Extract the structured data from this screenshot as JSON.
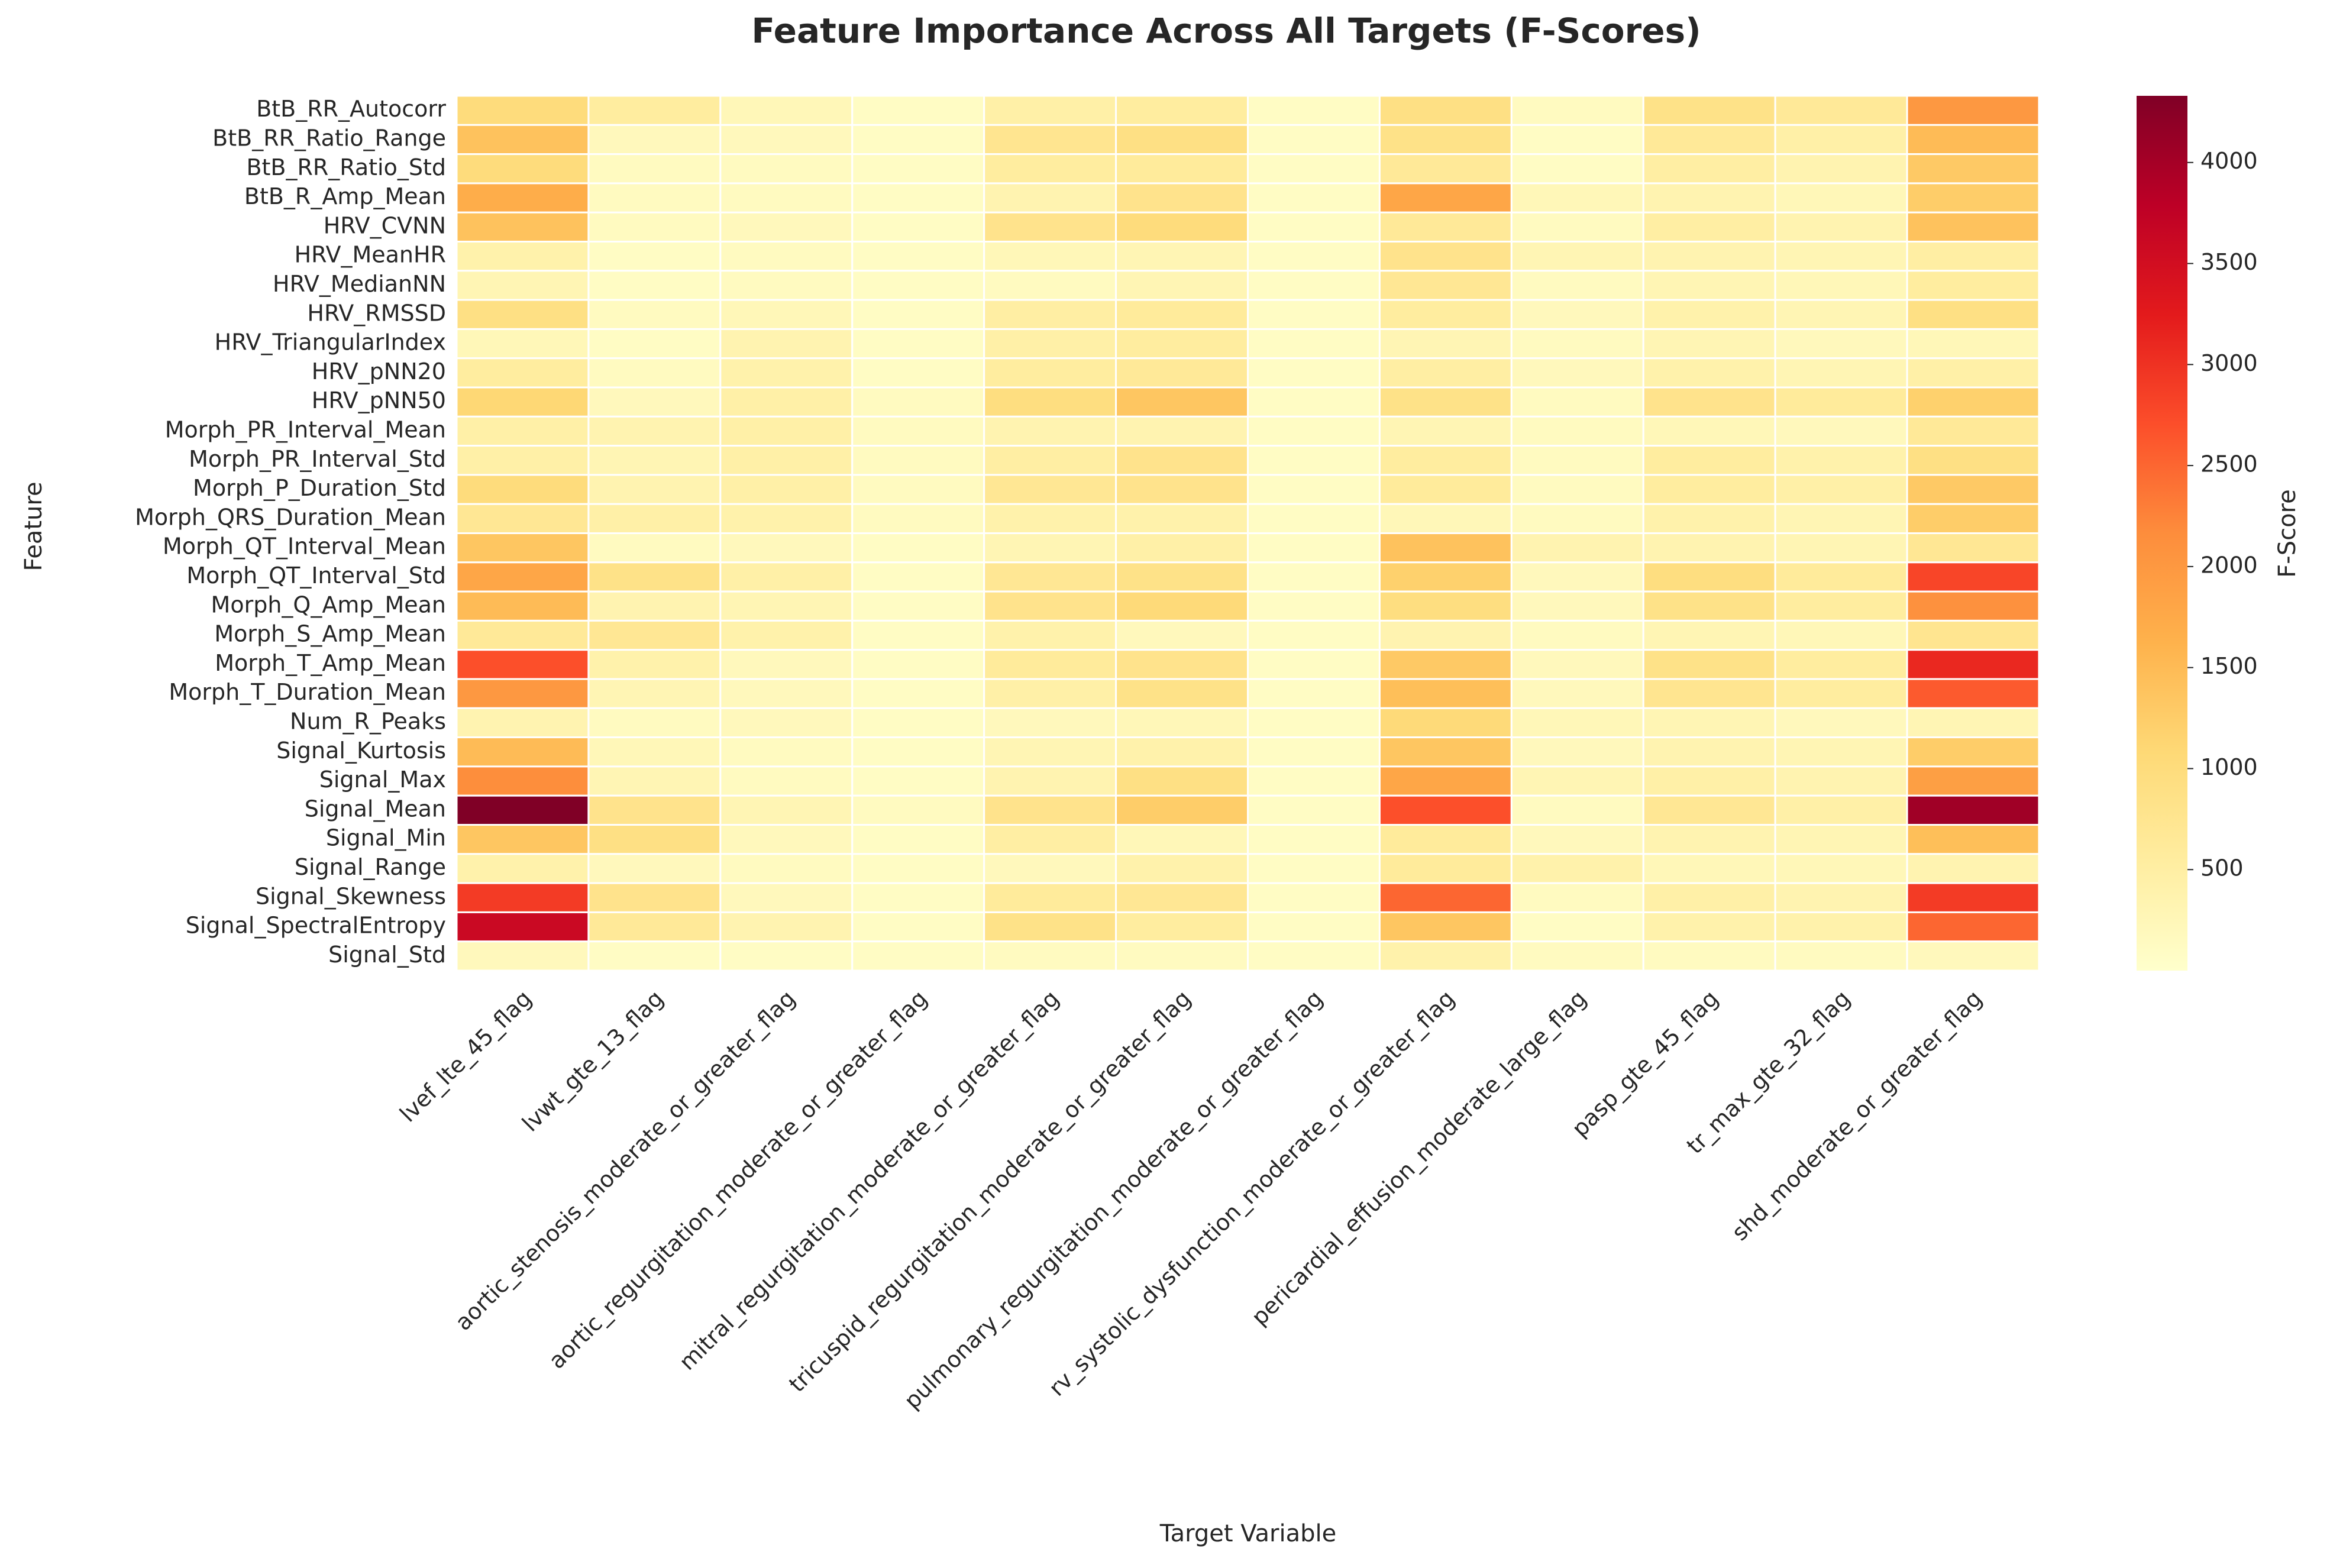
{
  "chart_data": {
    "type": "heatmap",
    "title": "Feature Importance Across All Targets (F-Scores)",
    "xlabel": "Target Variable",
    "ylabel": "Feature",
    "colorbar_label": "F-Score",
    "colormap": "YlOrRd",
    "value_range": [
      0,
      4330
    ],
    "colorbar_ticks": [
      500,
      1000,
      1500,
      2000,
      2500,
      3000,
      3500,
      4000
    ],
    "colors": {
      "YlOrRd": [
        "#ffffcc",
        "#ffeda0",
        "#fed976",
        "#feb24c",
        "#fd8d3c",
        "#fc4e2a",
        "#e31a1c",
        "#bd0026",
        "#800026"
      ],
      "cell_border": "#ffffff",
      "text": "#262626"
    },
    "grid": false,
    "columns": [
      "lvef_lte_45_flag",
      "lvwt_gte_13_flag",
      "aortic_stenosis_moderate_or_greater_flag",
      "aortic_regurgitation_moderate_or_greater_flag",
      "mitral_regurgitation_moderate_or_greater_flag",
      "tricuspid_regurgitation_moderate_or_greater_flag",
      "pulmonary_regurgitation_moderate_or_greater_flag",
      "rv_systolic_dysfunction_moderate_or_greater_flag",
      "pericardial_effusion_moderate_large_flag",
      "pasp_gte_45_flag",
      "tr_max_gte_32_flag",
      "shd_moderate_or_greater_flag"
    ],
    "rows": [
      "BtB_RR_Autocorr",
      "BtB_RR_Ratio_Range",
      "BtB_RR_Ratio_Std",
      "BtB_R_Amp_Mean",
      "HRV_CVNN",
      "HRV_MeanHR",
      "HRV_MedianNN",
      "HRV_RMSSD",
      "HRV_TriangularIndex",
      "HRV_pNN20",
      "HRV_pNN50",
      "Morph_PR_Interval_Mean",
      "Morph_PR_Interval_Std",
      "Morph_P_Duration_Std",
      "Morph_QRS_Duration_Mean",
      "Morph_QT_Interval_Mean",
      "Morph_QT_Interval_Std",
      "Morph_Q_Amp_Mean",
      "Morph_S_Amp_Mean",
      "Morph_T_Amp_Mean",
      "Morph_T_Duration_Mean",
      "Num_R_Peaks",
      "Signal_Kurtosis",
      "Signal_Max",
      "Signal_Mean",
      "Signal_Min",
      "Signal_Range",
      "Signal_Skewness",
      "Signal_SpectralEntropy",
      "Signal_Std"
    ],
    "values": [
      [
        1000,
        550,
        250,
        100,
        450,
        550,
        100,
        900,
        150,
        850,
        650,
        2000
      ],
      [
        1400,
        200,
        200,
        100,
        750,
        900,
        100,
        850,
        100,
        650,
        450,
        1500
      ],
      [
        1000,
        150,
        150,
        100,
        550,
        600,
        100,
        650,
        100,
        500,
        350,
        1300
      ],
      [
        1700,
        150,
        150,
        100,
        350,
        800,
        100,
        1800,
        250,
        350,
        250,
        1250
      ],
      [
        1400,
        150,
        200,
        100,
        800,
        1000,
        100,
        650,
        150,
        500,
        350,
        1400
      ],
      [
        400,
        100,
        150,
        100,
        250,
        300,
        100,
        800,
        300,
        350,
        300,
        500
      ],
      [
        300,
        100,
        150,
        100,
        150,
        300,
        100,
        700,
        150,
        300,
        250,
        550
      ],
      [
        900,
        150,
        250,
        100,
        500,
        600,
        100,
        550,
        200,
        400,
        300,
        900
      ],
      [
        250,
        100,
        350,
        100,
        450,
        550,
        100,
        300,
        150,
        300,
        200,
        250
      ],
      [
        550,
        150,
        400,
        100,
        550,
        650,
        100,
        500,
        200,
        400,
        300,
        450
      ],
      [
        1100,
        200,
        450,
        150,
        950,
        1350,
        100,
        850,
        150,
        800,
        600,
        1200
      ],
      [
        450,
        350,
        450,
        150,
        350,
        350,
        100,
        300,
        150,
        250,
        200,
        650
      ],
      [
        450,
        300,
        450,
        150,
        500,
        800,
        100,
        550,
        150,
        550,
        400,
        900
      ],
      [
        1000,
        350,
        450,
        150,
        700,
        800,
        100,
        600,
        150,
        550,
        450,
        1300
      ],
      [
        700,
        450,
        400,
        150,
        400,
        400,
        100,
        250,
        150,
        400,
        300,
        1250
      ],
      [
        1350,
        150,
        200,
        100,
        300,
        450,
        100,
        1400,
        350,
        350,
        300,
        700
      ],
      [
        1800,
        850,
        450,
        100,
        700,
        850,
        100,
        1200,
        200,
        950,
        600,
        2800
      ],
      [
        1500,
        350,
        300,
        100,
        800,
        1050,
        100,
        950,
        200,
        850,
        550,
        2100
      ],
      [
        650,
        700,
        400,
        100,
        400,
        200,
        100,
        350,
        150,
        300,
        250,
        750
      ],
      [
        2700,
        400,
        200,
        100,
        600,
        800,
        100,
        1300,
        200,
        850,
        550,
        3100
      ],
      [
        2000,
        300,
        200,
        100,
        450,
        850,
        100,
        1450,
        200,
        750,
        550,
        2600
      ],
      [
        350,
        150,
        200,
        100,
        200,
        250,
        100,
        1050,
        250,
        300,
        200,
        300
      ],
      [
        1500,
        250,
        150,
        100,
        300,
        400,
        100,
        1350,
        200,
        350,
        300,
        1250
      ],
      [
        2150,
        300,
        150,
        100,
        350,
        900,
        100,
        1800,
        300,
        450,
        350,
        1900
      ],
      [
        4330,
        800,
        300,
        150,
        800,
        1250,
        100,
        2700,
        150,
        700,
        450,
        4050
      ],
      [
        1350,
        900,
        200,
        100,
        500,
        250,
        100,
        600,
        200,
        350,
        300,
        1450
      ],
      [
        400,
        200,
        150,
        100,
        200,
        400,
        100,
        600,
        400,
        250,
        250,
        350
      ],
      [
        2900,
        800,
        200,
        100,
        600,
        700,
        100,
        2500,
        150,
        450,
        350,
        2900
      ],
      [
        3600,
        650,
        350,
        100,
        850,
        550,
        100,
        1350,
        100,
        400,
        400,
        2500
      ],
      [
        200,
        100,
        100,
        100,
        150,
        150,
        100,
        400,
        150,
        150,
        150,
        200
      ]
    ]
  }
}
